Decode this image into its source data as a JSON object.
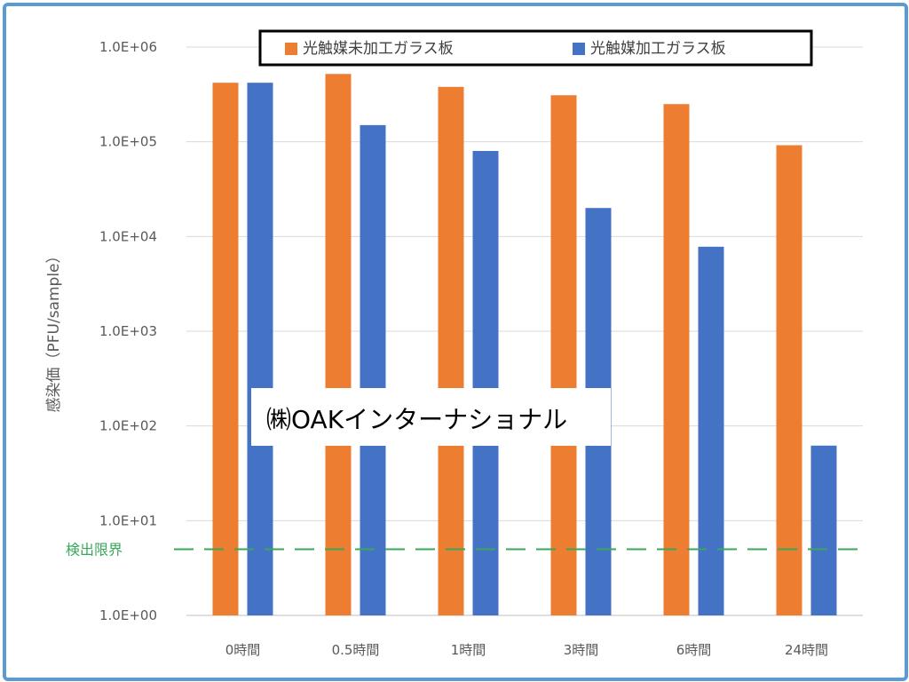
{
  "chart_data": {
    "type": "bar",
    "ylabel": "感染価（PFU/sample）",
    "yscale": "log",
    "ylim": [
      1,
      1000000
    ],
    "yticks": [
      "1.0E+00",
      "1.0E+01",
      "1.0E+02",
      "1.0E+03",
      "1.0E+04",
      "1.0E+05",
      "1.0E+06"
    ],
    "categories": [
      "0時間",
      "0.5時間",
      "1時間",
      "3時間",
      "6時間",
      "24時間"
    ],
    "series": [
      {
        "name": "光触媒未加工ガラス板",
        "color": "#ed7d31",
        "values": [
          420000,
          520000,
          380000,
          310000,
          250000,
          92000
        ]
      },
      {
        "name": "光触媒加工ガラス板",
        "color": "#4472c4",
        "values": [
          420000,
          150000,
          80000,
          20000,
          7800,
          62
        ]
      }
    ],
    "grid": true,
    "legend_position": "top",
    "detection_limit": {
      "label": "検出限界",
      "value": 5,
      "color": "#3aa75a"
    }
  },
  "watermark": "㈱OAKインターナショナル",
  "colors": {
    "frame": "#5b9bd5",
    "grid": "#d9d9d9"
  }
}
